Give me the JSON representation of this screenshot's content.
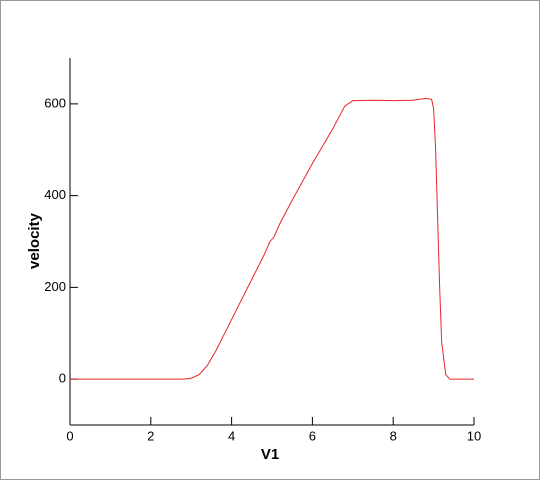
{
  "chart_data": {
    "type": "line",
    "xlabel": "V1",
    "ylabel": "velocity",
    "color": "#e8242b",
    "x": [
      0,
      1,
      2,
      2.8,
      3.0,
      3.2,
      3.4,
      3.6,
      3.8,
      4.0,
      4.2,
      4.4,
      4.6,
      4.8,
      4.95,
      5.0,
      5.05,
      5.2,
      5.5,
      6.0,
      6.5,
      6.8,
      7.0,
      7.5,
      8.0,
      8.5,
      8.8,
      8.95,
      9.0,
      9.05,
      9.1,
      9.15,
      9.2,
      9.3,
      9.4,
      10
    ],
    "values": [
      0,
      0,
      0,
      0,
      2,
      10,
      30,
      60,
      95,
      130,
      165,
      200,
      235,
      270,
      300,
      305,
      310,
      340,
      390,
      470,
      545,
      595,
      607,
      608,
      607,
      608,
      612,
      610,
      590,
      500,
      350,
      200,
      80,
      10,
      0,
      0
    ],
    "xlim": [
      0,
      10
    ],
    "xticks": [
      0,
      2,
      4,
      6,
      8,
      10
    ],
    "ylim": [
      -100,
      700
    ],
    "yticks": [
      0,
      200,
      400,
      600
    ]
  }
}
